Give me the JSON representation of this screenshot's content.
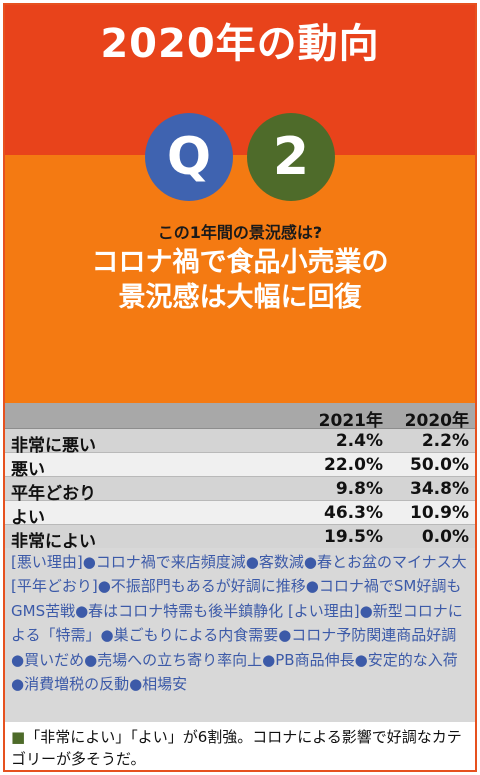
{
  "header": {
    "title": "2020年の動向",
    "q_letter": "Q",
    "q_number": "2",
    "question": "この1年間の景況感は?",
    "headline_line1": "コロナ禍で食品小売業の",
    "headline_line2": "景況感は大幅に回復"
  },
  "chart_data": {
    "type": "table",
    "columns": [
      "2021年",
      "2020年"
    ],
    "rows": [
      {
        "label": "非常に悪い",
        "values": [
          "2.4%",
          "2.2%"
        ]
      },
      {
        "label": "悪い",
        "values": [
          "22.0%",
          "50.0%"
        ]
      },
      {
        "label": "平年どおり",
        "values": [
          "9.8%",
          "34.8%"
        ]
      },
      {
        "label": "よい",
        "values": [
          "46.3%",
          "10.9%"
        ]
      },
      {
        "label": "非常によい",
        "values": [
          "19.5%",
          "0.0%"
        ]
      }
    ]
  },
  "reasons": {
    "text": "[悪い理由]●コロナ禍で来店頻度減●客数減●春とお盆のマイナス大 [平年どおり]●不振部門もあるが好調に推移●コロナ禍でSM好調もGMS苦戦●春はコロナ特需も後半鎮静化 [よい理由]●新型コロナによる「特需」●巣ごもりによる内食需要●コロナ予防関連商品好調●買いだめ●売場への立ち寄り率向上●PB商品伸長●安定的な入荷●消費増税の反動●相場安"
  },
  "footer": {
    "marker": "■",
    "text": "「非常によい」「よい」が6割強。コロナによる影響で好調なカテゴリーが多そうだ。"
  },
  "colors": {
    "hero_top": "#e8431b",
    "hero_bottom": "#f47a12",
    "q_circle": "#3f63b0",
    "number_circle": "#4e6b2a",
    "reason_text": "#3c5aa8"
  }
}
